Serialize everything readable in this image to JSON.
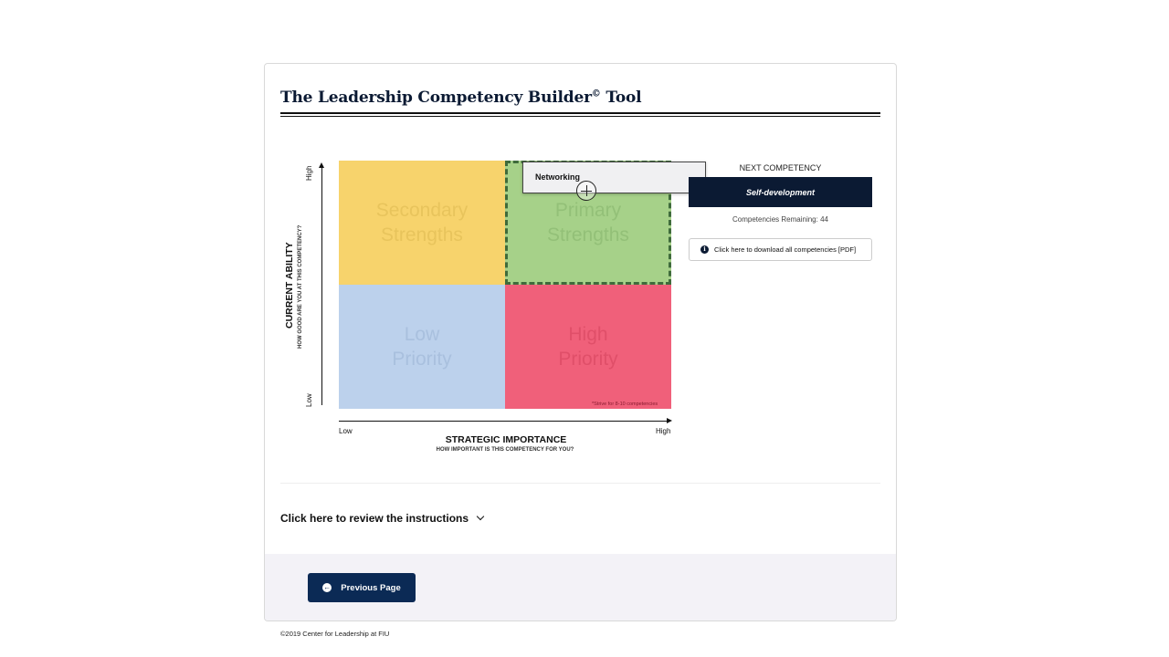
{
  "header": {
    "title": "The Leadership Competency Builder",
    "title_sup": "©",
    "title_suffix": " Tool"
  },
  "matrix": {
    "quadrants": {
      "top_left": "Secondary Strengths",
      "top_right": "Primary Strengths",
      "bottom_left": "Low Priority",
      "bottom_right": "High Priority"
    },
    "strive_note": "*Strive for 8-10 competencies",
    "dragging_item": "Networking",
    "y_axis": {
      "high": "High",
      "low": "Low",
      "title": "CURRENT ABILITY",
      "subtitle": "HOW GOOD ARE YOU AT THIS COMPETENCY?"
    },
    "x_axis": {
      "low": "Low",
      "high": "High",
      "title": "STRATEGIC IMPORTANCE",
      "subtitle": "HOW IMPORTANT IS THIS COMPETENCY FOR YOU?"
    },
    "colors": {
      "secondary": "#f7d36c",
      "primary": "#a6d189",
      "low": "#bcd1ec",
      "high": "#f0607a"
    }
  },
  "panel": {
    "next_label": "NEXT COMPETENCY",
    "next_value": "Self-development",
    "remaining": "Competencies Remaining: 44",
    "download_label": "Click here to download all competencies [PDF]"
  },
  "instructions": {
    "label": "Click here to review the instructions"
  },
  "nav": {
    "previous_label": "Previous Page"
  },
  "footer": {
    "copyright": "©2019 Center for Leadership at FIU"
  },
  "accent": "#0b1a33"
}
